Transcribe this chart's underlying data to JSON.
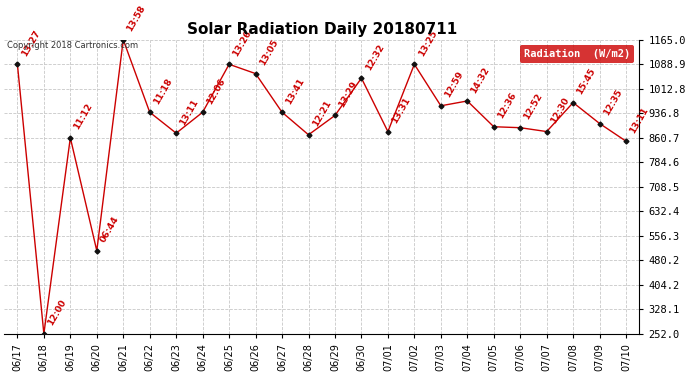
{
  "title": "Solar Radiation Daily 20180711",
  "copyright": "Copyright 2018 Cartronics.com",
  "ylim": [
    252.0,
    1165.0
  ],
  "yticks": [
    252.0,
    328.1,
    404.2,
    480.2,
    556.3,
    632.4,
    708.5,
    784.6,
    860.7,
    936.8,
    1012.8,
    1088.9,
    1165.0
  ],
  "background_color": "#ffffff",
  "grid_color": "#c8c8c8",
  "line_color": "#cc0000",
  "marker_color": "#111111",
  "dates": [
    "06/17",
    "06/18",
    "06/19",
    "06/20",
    "06/21",
    "06/22",
    "06/23",
    "06/24",
    "06/25",
    "06/26",
    "06/27",
    "06/28",
    "06/29",
    "06/30",
    "07/01",
    "07/02",
    "07/03",
    "07/04",
    "07/05",
    "07/06",
    "07/07",
    "07/08",
    "07/09",
    "07/10"
  ],
  "values": [
    1088.9,
    252.0,
    860.7,
    510.0,
    1165.0,
    940.0,
    875.0,
    940.0,
    1088.9,
    1060.0,
    940.0,
    870.0,
    930.0,
    1046.0,
    880.0,
    1088.9,
    960.0,
    975.0,
    895.0,
    892.0,
    880.0,
    970.0,
    905.0,
    850.0
  ],
  "annotations": [
    "13:27",
    "12:00",
    "11:12",
    "06:44",
    "13:58",
    "11:18",
    "13:11",
    "12:06",
    "13:26",
    "13:05",
    "13:41",
    "12:21",
    "13:29",
    "12:32",
    "13:31",
    "13:25",
    "12:59",
    "14:32",
    "12:36",
    "12:52",
    "12:30",
    "15:45",
    "12:35",
    "13:11"
  ],
  "legend_label": "Radiation  (W/m2)",
  "legend_bg": "#cc0000",
  "legend_text_color": "#ffffff",
  "title_fontsize": 11,
  "annotation_fontsize": 6.5,
  "annotation_color": "#cc0000",
  "figsize": [
    6.9,
    3.75
  ],
  "dpi": 100
}
